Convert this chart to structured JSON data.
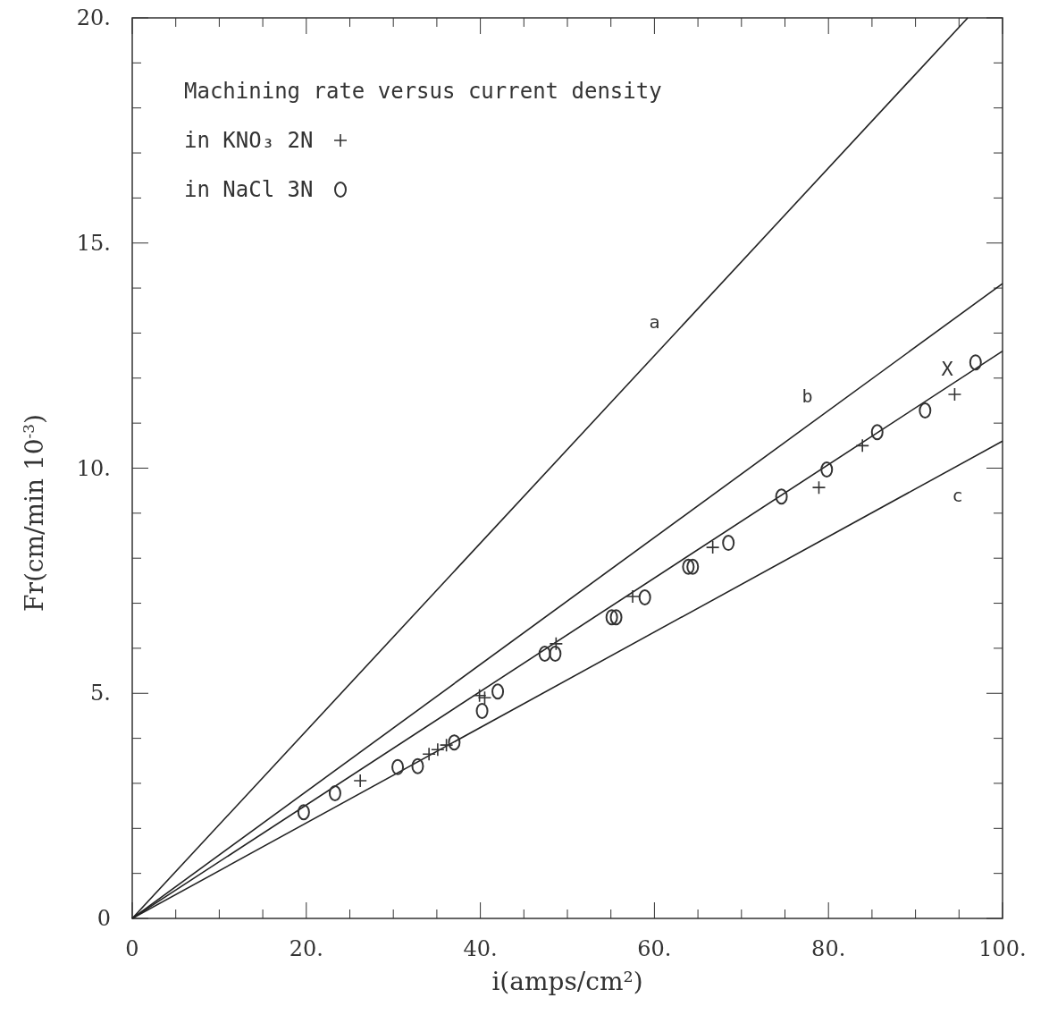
{
  "chart_data": {
    "type": "scatter",
    "title": "Machining rate versus current density",
    "xlabel": "i(amps/cm²)",
    "ylabel": "Fr(cm/min 10$^{-3}$)",
    "xlim": [
      0,
      100
    ],
    "ylim": [
      0,
      20
    ],
    "xticks": [
      0,
      {
        "value": 5,
        "label": null
      },
      {
        "value": 10,
        "label": null
      },
      {
        "value": 15,
        "label": null
      },
      {
        "value": 20,
        "label": "20."
      },
      {
        "value": 25,
        "label": null
      },
      {
        "value": 30,
        "label": null
      },
      {
        "value": 35,
        "label": null
      },
      {
        "value": 40,
        "label": "40."
      },
      {
        "value": 45,
        "label": null
      },
      {
        "value": 50,
        "label": null
      },
      {
        "value": 55,
        "label": null
      },
      {
        "value": 60,
        "label": "60."
      },
      {
        "value": 65,
        "label": null
      },
      {
        "value": 70,
        "label": null
      },
      {
        "value": 75,
        "label": null
      },
      {
        "value": 80,
        "label": "80."
      },
      {
        "value": 85,
        "label": null
      },
      {
        "value": 90,
        "label": null
      },
      {
        "value": 95,
        "label": null
      },
      {
        "value": 100,
        "label": "100."
      }
    ],
    "yticks": [
      0,
      {
        "value": 1,
        "label": null
      },
      {
        "value": 2,
        "label": null
      },
      {
        "value": 3,
        "label": null
      },
      {
        "value": 4,
        "label": null
      },
      {
        "value": 5,
        "label": "5."
      },
      {
        "value": 6,
        "label": null
      },
      {
        "value": 7,
        "label": null
      },
      {
        "value": 8,
        "label": null
      },
      {
        "value": 9,
        "label": null
      },
      {
        "value": 10,
        "label": "10."
      },
      {
        "value": 11,
        "label": null
      },
      {
        "value": 12,
        "label": null
      },
      {
        "value": 13,
        "label": null
      },
      {
        "value": 14,
        "label": null
      },
      {
        "value": 15,
        "label": "15."
      },
      {
        "value": 16,
        "label": null
      },
      {
        "value": 17,
        "label": null
      },
      {
        "value": 18,
        "label": null
      },
      {
        "value": 19,
        "label": null
      },
      {
        "value": 20,
        "label": "20."
      }
    ],
    "grid": false,
    "legend": "top left",
    "series": [
      {
        "type": "line",
        "name": "a",
        "color": "#222222",
        "x": [
          0,
          96
        ],
        "values": [
          0,
          20
        ],
        "marker": "none"
      },
      {
        "type": "line",
        "name": "b",
        "color": "#222222",
        "x": [
          0,
          100
        ],
        "values": [
          0,
          14.1
        ],
        "marker": "none"
      },
      {
        "type": "line",
        "color": "#222222",
        "x": [
          0,
          100
        ],
        "values": [
          0,
          12.6
        ],
        "marker": "none"
      },
      {
        "type": "line",
        "name": "c",
        "color": "#222222",
        "x": [
          0,
          100
        ],
        "values": [
          0,
          10.6
        ],
        "marker": "none"
      },
      {
        "name": "in KNO₃ 2N",
        "marker": "cross",
        "color": "#333333",
        "x": [
          26.2,
          34.1,
          35.1,
          36.1,
          39.9,
          40.5,
          48.7,
          57.5,
          66.7,
          78.9,
          83.9,
          94.5
        ],
        "values": [
          3.06,
          3.65,
          3.75,
          3.85,
          4.95,
          4.9,
          6.1,
          7.15,
          8.24,
          9.57,
          10.5,
          11.64
        ]
      },
      {
        "name": "in NaCl 3N",
        "marker": "circle",
        "color": "#333333",
        "x": [
          19.7,
          23.3,
          30.5,
          32.8,
          37.0,
          40.2,
          42.0,
          47.4,
          48.6,
          55.1,
          55.6,
          58.9,
          63.9,
          64.4,
          68.5,
          74.6,
          79.8,
          85.6,
          91.1,
          96.9
        ],
        "values": [
          2.36,
          2.78,
          3.36,
          3.38,
          3.91,
          4.61,
          5.04,
          5.88,
          5.88,
          6.69,
          6.69,
          7.13,
          7.81,
          7.81,
          8.34,
          9.37,
          9.97,
          10.8,
          11.28,
          12.35
        ]
      }
    ],
    "annotations": [
      "X"
    ]
  }
}
